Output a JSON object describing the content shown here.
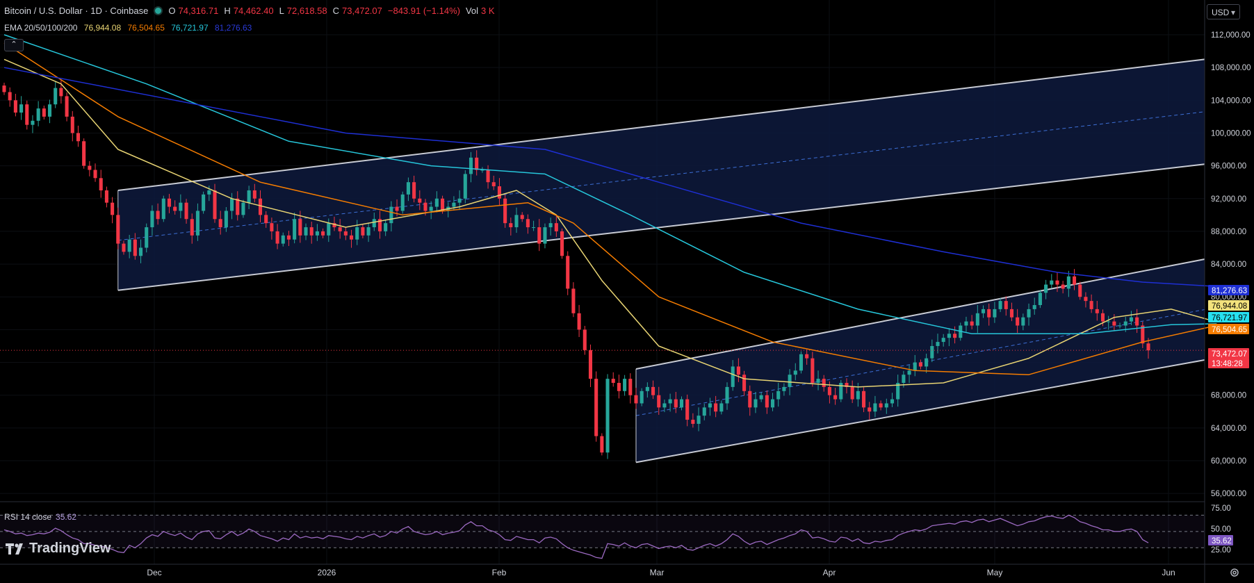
{
  "header": {
    "symbol": "Bitcoin / U.S. Dollar · 1D · Coinbase",
    "o_label": "O",
    "o_value": "74,316.71",
    "h_label": "H",
    "h_value": "74,462.40",
    "l_label": "L",
    "l_value": "72,618.58",
    "c_label": "C",
    "c_value": "73,472.07",
    "change": "−843.91 (−1.14%)",
    "vol_label": "Vol",
    "vol_value": "3 K"
  },
  "ema": {
    "label": "EMA 20/50/100/200",
    "v20": "76,944.08",
    "v50": "76,504.65",
    "v100": "76,721.97",
    "v200": "81,276.63"
  },
  "currency": "USD",
  "collapse_icon": "chevron-up-icon",
  "rsi": {
    "label": "RSI 14 close",
    "value": "35.62"
  },
  "brand": "TradingView",
  "colors": {
    "up": "#26a69a",
    "down": "#f23645",
    "ema20": "#e8d473",
    "ema50": "#f57c00",
    "ema100": "#26c6da",
    "ema200": "#1e2fd4",
    "rsi": "#9c6ac2",
    "channel_fill": "#0e1a3d"
  },
  "chart_data": [
    {
      "type": "candlestick",
      "title": "Bitcoin / U.S. Dollar · 1D · Coinbase",
      "y_ticks": [
        "112,000.00",
        "108,000.00",
        "104,000.00",
        "100,000.00",
        "96,000.00",
        "92,000.00",
        "88,000.00",
        "84,000.00",
        "80,000.00",
        "76,000.00",
        "72,000.00",
        "68,000.00",
        "64,000.00",
        "60,000.00",
        "56,000.00"
      ],
      "x_ticks": [
        "Dec",
        "2026",
        "Feb",
        "Mar",
        "Apr",
        "May",
        "Jun"
      ],
      "ylim": [
        54000,
        116000
      ],
      "price_labels": [
        {
          "text": "81,276.63",
          "series": "EMA 200"
        },
        {
          "text": "76,944.08",
          "series": "EMA 20"
        },
        {
          "text": "76,721.97",
          "series": "EMA 100"
        },
        {
          "text": "76,504.65",
          "series": "EMA 50"
        },
        {
          "text": "73,472.07",
          "series": "price"
        },
        {
          "text": "13:48:28",
          "series": "countdown"
        }
      ],
      "closes": [
        105000,
        104000,
        102500,
        103500,
        101000,
        101500,
        103000,
        102000,
        103500,
        105500,
        104500,
        102000,
        100000,
        99000,
        96000,
        95500,
        94500,
        93000,
        91500,
        90000,
        86500,
        85500,
        87000,
        85000,
        86000,
        88500,
        90500,
        89500,
        92000,
        91000,
        90500,
        91500,
        89500,
        87500,
        90500,
        92500,
        93000,
        89500,
        88500,
        90500,
        92000,
        90000,
        91500,
        93000,
        92000,
        90000,
        89000,
        88000,
        86500,
        87500,
        87000,
        89500,
        87500,
        88500,
        87500,
        88000,
        87500,
        89000,
        88500,
        88000,
        87500,
        87000,
        88500,
        87500,
        88500,
        89500,
        88000,
        89000,
        91000,
        90500,
        92500,
        94000,
        92000,
        91500,
        90500,
        91000,
        92000,
        90500,
        91000,
        91500,
        92000,
        95000,
        97000,
        95500,
        95500,
        94000,
        93500,
        92000,
        89000,
        88500,
        90000,
        89500,
        88500,
        88500,
        86500,
        88500,
        89000,
        88000,
        85000,
        81000,
        78000,
        76000,
        73500,
        70000,
        63000,
        61000,
        70000,
        69500,
        68500,
        70000,
        68000,
        67000,
        68500,
        69000,
        68000,
        66500,
        67000,
        67500,
        66500,
        67500,
        65000,
        64500,
        65500,
        66500,
        67000,
        66000,
        67000,
        69000,
        71500,
        70500,
        68500,
        66500,
        67500,
        68000,
        66500,
        67500,
        68500,
        69000,
        70500,
        71000,
        73000,
        72500,
        69500,
        70000,
        69000,
        68000,
        67500,
        69500,
        69000,
        67500,
        68500,
        66500,
        66000,
        67000,
        66500,
        67000,
        67500,
        69500,
        70500,
        71000,
        72000,
        71500,
        72500,
        74000,
        74500,
        75000,
        75500,
        75000,
        76500,
        77000,
        76500,
        78000,
        78500,
        77500,
        78500,
        79500,
        78500,
        77500,
        76500,
        77500,
        78500,
        79000,
        80500,
        81500,
        82000,
        81500,
        81000,
        82500,
        81500,
        80000,
        79500,
        78500,
        78000,
        77000,
        77000,
        76500,
        76500,
        77000,
        77500,
        76500,
        74316,
        73472
      ],
      "ema": {
        "ema20": [
          {
            "d": 0,
            "v": 109000
          },
          {
            "d": 10,
            "v": 106000
          },
          {
            "d": 20,
            "v": 98000
          },
          {
            "d": 40,
            "v": 92000
          },
          {
            "d": 60,
            "v": 88500
          },
          {
            "d": 80,
            "v": 91000
          },
          {
            "d": 90,
            "v": 93000
          },
          {
            "d": 97,
            "v": 90000
          },
          {
            "d": 105,
            "v": 82000
          },
          {
            "d": 115,
            "v": 74000
          },
          {
            "d": 130,
            "v": 70000
          },
          {
            "d": 150,
            "v": 69000
          },
          {
            "d": 165,
            "v": 69500
          },
          {
            "d": 180,
            "v": 72500
          },
          {
            "d": 195,
            "v": 77500
          },
          {
            "d": 205,
            "v": 78500
          },
          {
            "d": 213,
            "v": 76944
          }
        ],
        "ema50": [
          {
            "d": 0,
            "v": 111000
          },
          {
            "d": 20,
            "v": 102000
          },
          {
            "d": 45,
            "v": 94000
          },
          {
            "d": 70,
            "v": 90000
          },
          {
            "d": 92,
            "v": 91500
          },
          {
            "d": 100,
            "v": 89000
          },
          {
            "d": 115,
            "v": 80000
          },
          {
            "d": 135,
            "v": 74500
          },
          {
            "d": 160,
            "v": 71000
          },
          {
            "d": 180,
            "v": 70500
          },
          {
            "d": 200,
            "v": 74500
          },
          {
            "d": 213,
            "v": 76504
          }
        ],
        "ema100": [
          {
            "d": 0,
            "v": 112000
          },
          {
            "d": 25,
            "v": 106000
          },
          {
            "d": 50,
            "v": 99000
          },
          {
            "d": 75,
            "v": 96000
          },
          {
            "d": 95,
            "v": 95000
          },
          {
            "d": 110,
            "v": 90000
          },
          {
            "d": 130,
            "v": 83000
          },
          {
            "d": 150,
            "v": 78500
          },
          {
            "d": 170,
            "v": 75500
          },
          {
            "d": 190,
            "v": 75500
          },
          {
            "d": 205,
            "v": 76600
          },
          {
            "d": 213,
            "v": 76721
          }
        ],
        "ema200": [
          {
            "d": 0,
            "v": 108000
          },
          {
            "d": 30,
            "v": 104000
          },
          {
            "d": 60,
            "v": 100000
          },
          {
            "d": 95,
            "v": 98000
          },
          {
            "d": 115,
            "v": 94000
          },
          {
            "d": 140,
            "v": 89000
          },
          {
            "d": 165,
            "v": 85500
          },
          {
            "d": 185,
            "v": 83000
          },
          {
            "d": 200,
            "v": 81800
          },
          {
            "d": 213,
            "v": 81276
          }
        ]
      },
      "channels": [
        {
          "d_start": 20,
          "d_end": 213,
          "lower_start": 80800,
          "lower_end": 96200,
          "upper_start": 93000,
          "upper_end": 109000
        },
        {
          "d_start": 111,
          "d_end": 213,
          "lower_start": 59800,
          "lower_end": 72300,
          "upper_start": 71200,
          "upper_end": 84600
        }
      ]
    },
    {
      "type": "line",
      "title": "RSI 14 close",
      "y_ticks": [
        "75.00",
        "50.00",
        "35.62",
        "25.00"
      ],
      "levels": [
        70,
        50,
        30
      ],
      "values": [
        52,
        50,
        47,
        48,
        45,
        46,
        48,
        47,
        49,
        54,
        51,
        46,
        42,
        40,
        35,
        35,
        33,
        32,
        30,
        28,
        25,
        24,
        33,
        30,
        35,
        42,
        46,
        44,
        50,
        47,
        45,
        48,
        43,
        40,
        47,
        50,
        51,
        42,
        41,
        46,
        50,
        45,
        48,
        53,
        50,
        45,
        43,
        41,
        38,
        42,
        40,
        47,
        42,
        44,
        42,
        43,
        41,
        45,
        44,
        43,
        41,
        40,
        44,
        42,
        45,
        47,
        43,
        45,
        50,
        48,
        53,
        56,
        50,
        48,
        46,
        47,
        50,
        46,
        48,
        49,
        51,
        58,
        62,
        57,
        57,
        52,
        50,
        46,
        40,
        39,
        44,
        42,
        40,
        40,
        36,
        42,
        43,
        41,
        35,
        30,
        27,
        25,
        23,
        21,
        18,
        17,
        35,
        34,
        32,
        36,
        32,
        30,
        34,
        35,
        32,
        29,
        31,
        32,
        30,
        33,
        28,
        27,
        30,
        33,
        35,
        32,
        35,
        40,
        47,
        44,
        38,
        34,
        37,
        38,
        34,
        37,
        40,
        42,
        45,
        47,
        52,
        50,
        42,
        43,
        41,
        38,
        37,
        43,
        42,
        38,
        41,
        36,
        35,
        38,
        37,
        39,
        40,
        45,
        48,
        50,
        52,
        51,
        53,
        57,
        58,
        59,
        60,
        59,
        62,
        63,
        61,
        64,
        65,
        62,
        64,
        66,
        63,
        60,
        57,
        59,
        62,
        63,
        66,
        68,
        69,
        67,
        66,
        70,
        67,
        62,
        60,
        57,
        55,
        52,
        52,
        50,
        50,
        52,
        53,
        50,
        40,
        36
      ]
    }
  ]
}
